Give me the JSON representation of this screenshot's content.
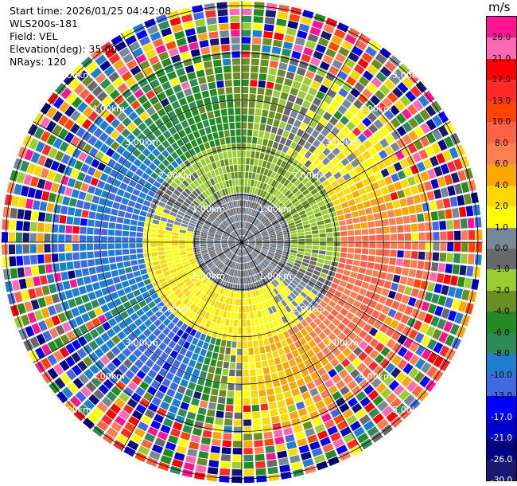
{
  "header": {
    "start_time": "Start time: 2026/01/25 04:42:08",
    "instrument": "WLS200s-181",
    "field": "Field: VEL",
    "elevation": "Elevation(deg): 35.00",
    "nrays": "NRays: 120"
  },
  "colorbar": {
    "unit": "m/s",
    "ticks": [
      "26.0",
      "21.0",
      "17.0",
      "13.0",
      "10.0",
      "8.0",
      "6.0",
      "4.0",
      "2.0",
      "1.0",
      "0.0",
      "-1.0",
      "-2.0",
      "-4.0",
      "-6.0",
      "-8.0",
      "-10.0",
      "-13.0",
      "-17.0",
      "-21.0",
      "-26.0",
      "-30.0"
    ],
    "colors": [
      "#ff1493",
      "#ff69b4",
      "#ff0000",
      "#ff2a2a",
      "#ff4500",
      "#ff6347",
      "#ff7f50",
      "#ffa500",
      "#ffd700",
      "#ffff00",
      "#778899",
      "#696969",
      "#9acd32",
      "#6b8e23",
      "#228b22",
      "#2e8b57",
      "#1e7fd0",
      "#4169e1",
      "#0000ff",
      "#0000cd",
      "#000080",
      "#191970"
    ]
  },
  "chart_data": {
    "type": "heatmap",
    "subtype": "ppi-polar",
    "field": "VEL",
    "units": "m/s",
    "nrays": 120,
    "elevation_deg": 35.0,
    "max_range_km": 5.0,
    "range_rings_km": [
      1,
      2,
      3,
      4,
      5
    ],
    "range_ring_labels": [
      "1.00km",
      "2.00km",
      "3.00km",
      "4.00km",
      "5.00km"
    ],
    "azimuth_spokes_deg": [
      0,
      30,
      60,
      90,
      120,
      150,
      180,
      210,
      240,
      270,
      300,
      330
    ],
    "color_levels": [
      -30,
      -26,
      -21,
      -17,
      -13,
      -10,
      -8,
      -6,
      -4,
      -2,
      -1,
      0,
      1,
      2,
      4,
      6,
      8,
      10,
      13,
      17,
      21,
      26
    ],
    "velocity_pattern": {
      "inner_ring_km": [
        0,
        1
      ],
      "inner_value_ms": 0,
      "ring_1_to_2_km_by_azimuth": [
        {
          "azimuth_deg": 0,
          "value_ms": -2
        },
        {
          "azimuth_deg": 45,
          "value_ms": -2
        },
        {
          "azimuth_deg": 90,
          "value_ms": -2
        },
        {
          "azimuth_deg": 135,
          "value_ms": 1
        },
        {
          "azimuth_deg": 180,
          "value_ms": 2
        },
        {
          "azimuth_deg": 225,
          "value_ms": 2
        },
        {
          "azimuth_deg": 270,
          "value_ms": 2
        },
        {
          "azimuth_deg": 315,
          "value_ms": -1
        }
      ],
      "ring_2_to_4_km_by_azimuth": [
        {
          "azimuth_deg": 0,
          "value_ms": -4
        },
        {
          "azimuth_deg": 30,
          "value_ms": 0
        },
        {
          "azimuth_deg": 60,
          "value_ms": 2
        },
        {
          "azimuth_deg": 90,
          "value_ms": 8
        },
        {
          "azimuth_deg": 120,
          "value_ms": 8
        },
        {
          "azimuth_deg": 150,
          "value_ms": 6
        },
        {
          "azimuth_deg": 180,
          "value_ms": 2
        },
        {
          "azimuth_deg": 210,
          "value_ms": -13
        },
        {
          "azimuth_deg": 240,
          "value_ms": -8
        },
        {
          "azimuth_deg": 270,
          "value_ms": -10
        },
        {
          "azimuth_deg": 300,
          "value_ms": -10
        },
        {
          "azimuth_deg": 330,
          "value_ms": -6
        }
      ],
      "outer_km": [
        4,
        5
      ],
      "outer_note": "noise"
    }
  }
}
